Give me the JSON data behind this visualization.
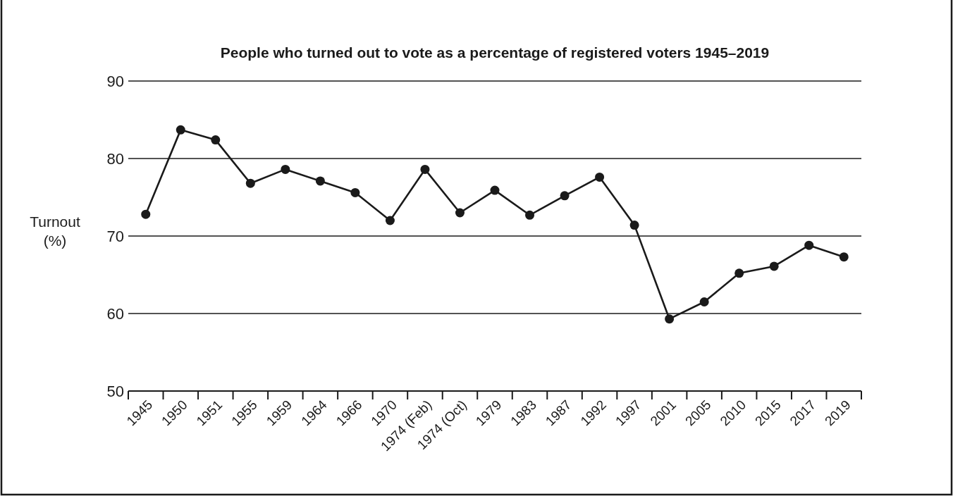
{
  "chart_data": {
    "type": "line",
    "title": "People who turned out to vote as a percentage of registered voters 1945–2019",
    "ylabel": "Turnout\n(%)",
    "categories": [
      "1945",
      "1950",
      "1951",
      "1955",
      "1959",
      "1964",
      "1966",
      "1970",
      "1974 (Feb)",
      "1974 (Oct)",
      "1979",
      "1983",
      "1987",
      "1992",
      "1997",
      "2001",
      "2005",
      "2010",
      "2015",
      "2017",
      "2019"
    ],
    "series": [
      {
        "color": "#1a1a1a",
        "values": [
          72.8,
          83.7,
          82.4,
          76.8,
          78.6,
          77.1,
          75.6,
          72.0,
          78.6,
          73.0,
          75.9,
          72.7,
          75.2,
          77.6,
          71.4,
          59.3,
          61.5,
          65.2,
          66.1,
          68.8,
          67.3
        ]
      }
    ],
    "ylim": [
      50,
      90
    ],
    "yticks": [
      50,
      60,
      70,
      80,
      90
    ],
    "grid": "y",
    "marker": "circle",
    "line_style": "solid"
  }
}
